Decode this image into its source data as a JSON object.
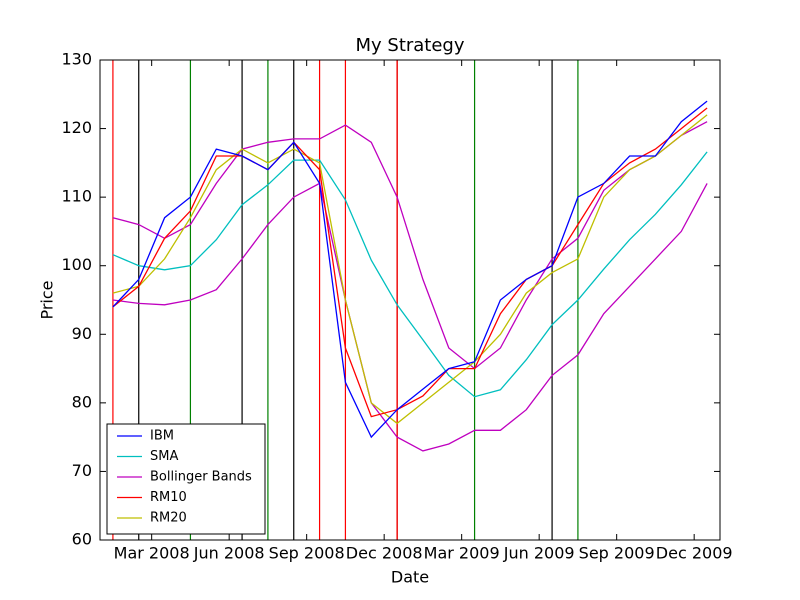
{
  "chart_data": {
    "type": "line",
    "title": "My Strategy",
    "x_label": "Date",
    "y_label": "Price",
    "x": [
      "2008-01",
      "2008-02",
      "2008-03",
      "2008-04",
      "2008-05",
      "2008-06",
      "2008-07",
      "2008-08",
      "2008-09",
      "2008-10",
      "2008-11",
      "2008-12",
      "2009-01",
      "2009-02",
      "2009-03",
      "2009-04",
      "2009-05",
      "2009-06",
      "2009-07",
      "2009-08",
      "2009-09",
      "2009-10",
      "2009-11",
      "2009-12"
    ],
    "xlim": [
      "2008-01",
      "2009-12"
    ],
    "xticks": [
      {
        "value": "2008-03",
        "label": "Mar 2008"
      },
      {
        "value": "2008-06",
        "label": "Jun 2008"
      },
      {
        "value": "2008-09",
        "label": "Sep 2008"
      },
      {
        "value": "2008-12",
        "label": "Dec 2008"
      },
      {
        "value": "2009-03",
        "label": "Mar 2009"
      },
      {
        "value": "2009-06",
        "label": "Jun 2009"
      },
      {
        "value": "2009-09",
        "label": "Sep 2009"
      },
      {
        "value": "2009-12",
        "label": "Dec 2009"
      }
    ],
    "ylim": [
      60,
      130
    ],
    "yticks": [
      60,
      70,
      80,
      90,
      100,
      110,
      120,
      130
    ],
    "grid": false,
    "legend": "lower left",
    "series": [
      {
        "name": "IBM",
        "color": "#0000ff",
        "values": [
          94,
          98,
          107,
          110,
          117,
          116,
          114,
          118,
          112,
          83,
          75,
          79,
          82,
          85,
          86,
          95,
          98,
          100,
          110,
          112,
          116,
          116,
          121,
          124
        ]
      },
      {
        "name": "SMA",
        "color": "#00bfbf",
        "values": [
          101.6,
          100,
          99.4,
          100,
          103.8,
          108.9,
          111.8,
          115.4,
          115.4,
          109.6,
          100.8,
          94.3,
          89.2,
          84,
          80.9,
          81.9,
          86.3,
          91.4,
          95,
          99.5,
          103.8,
          107.5,
          111.8,
          116.6
        ]
      },
      {
        "name": "Bollinger Bands",
        "color": "#bf00bf",
        "values": [
          107,
          106,
          104,
          106,
          112,
          117,
          118,
          118.5,
          118.5,
          120.5,
          118,
          110,
          98,
          88,
          85,
          88,
          95,
          101,
          104,
          111,
          114,
          116,
          119,
          121
        ],
        "lower": [
          95,
          94.5,
          94.3,
          95,
          96.5,
          101,
          106,
          110,
          112,
          95,
          80,
          75,
          73,
          74,
          76,
          76,
          79,
          84,
          87,
          93,
          97,
          101,
          105,
          112
        ]
      },
      {
        "name": "RM10",
        "color": "#ff0000",
        "values": [
          94,
          97,
          104,
          108,
          116,
          116,
          114,
          118,
          114,
          88,
          78,
          79,
          81,
          85,
          85,
          93,
          98,
          100,
          106,
          112,
          115,
          117,
          120,
          123
        ]
      },
      {
        "name": "RM20",
        "color": "#bfbf00",
        "values": [
          96,
          97,
          101,
          107,
          114,
          117,
          115,
          117,
          115,
          95,
          80,
          77,
          80,
          83,
          86,
          90,
          96,
          99,
          101,
          110,
          114,
          116,
          119,
          122
        ]
      }
    ],
    "vlines": [
      {
        "x": "2008-01",
        "color": "#ff0000"
      },
      {
        "x": "2008-02",
        "color": "#000000"
      },
      {
        "x": "2008-04",
        "color": "#008000"
      },
      {
        "x": "2008-06",
        "color": "#000000"
      },
      {
        "x": "2008-07",
        "color": "#008000"
      },
      {
        "x": "2008-08",
        "color": "#000000"
      },
      {
        "x": "2008-09",
        "color": "#ff0000"
      },
      {
        "x": "2008-10",
        "color": "#ff0000"
      },
      {
        "x": "2008-12",
        "color": "#000000"
      },
      {
        "x": "2008-12",
        "color": "#ff0000"
      },
      {
        "x": "2008-12",
        "color": "#ff0000"
      },
      {
        "x": "2009-03",
        "color": "#008000"
      },
      {
        "x": "2009-06",
        "color": "#000000"
      },
      {
        "x": "2009-07",
        "color": "#008000"
      }
    ]
  }
}
